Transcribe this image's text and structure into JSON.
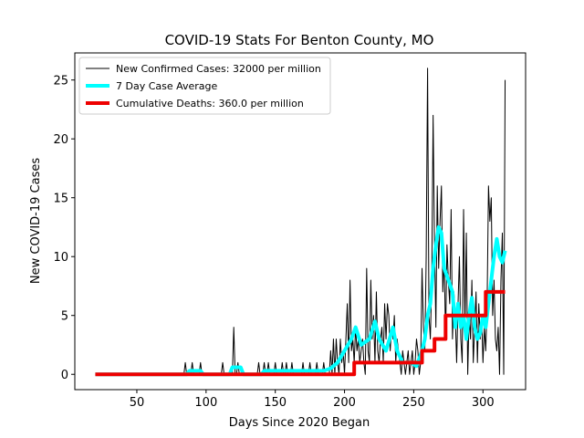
{
  "chart_data": {
    "type": "line",
    "title": "COVID-19 Stats For Benton County, MO",
    "xlabel": "Days Since 2020 Began",
    "ylabel": "New COVID-19 Cases",
    "xlim": [
      5.2,
      330.8
    ],
    "ylim": [
      -1.3,
      27.3
    ],
    "xticks": [
      50,
      100,
      150,
      200,
      250,
      300
    ],
    "yticks": [
      0,
      5,
      10,
      15,
      20,
      25
    ],
    "legend": "upper left",
    "series": [
      {
        "name": "New Confirmed Cases: 32000 per million",
        "color": "#000000",
        "width": 1,
        "x": [
          20,
          84,
          85,
          86,
          89,
          90,
          91,
          95,
          96,
          97,
          111,
          112,
          113,
          119,
          120,
          121,
          122,
          123,
          124,
          137,
          138,
          139,
          141,
          142,
          143,
          144,
          145,
          146,
          149,
          150,
          151,
          154,
          155,
          156,
          157,
          158,
          159,
          161,
          162,
          163,
          169,
          170,
          171,
          174,
          175,
          176,
          179,
          180,
          181,
          184,
          185,
          186,
          189,
          190,
          191,
          192,
          193,
          194,
          195,
          196,
          197,
          198,
          199,
          200,
          201,
          202,
          203,
          204,
          205,
          206,
          207,
          208,
          209,
          210,
          211,
          212,
          213,
          214,
          215,
          216,
          217,
          218,
          219,
          220,
          221,
          222,
          223,
          224,
          225,
          226,
          227,
          228,
          229,
          230,
          231,
          232,
          233,
          234,
          235,
          236,
          237,
          238,
          239,
          240,
          241,
          242,
          243,
          244,
          245,
          246,
          247,
          248,
          249,
          250,
          251,
          252,
          253,
          254,
          255,
          256,
          257,
          258,
          259,
          260,
          261,
          262,
          263,
          264,
          265,
          266,
          267,
          268,
          269,
          270,
          271,
          272,
          273,
          274,
          275,
          276,
          277,
          278,
          279,
          280,
          281,
          282,
          283,
          284,
          285,
          286,
          287,
          288,
          289,
          290,
          291,
          292,
          293,
          294,
          295,
          296,
          297,
          298,
          299,
          300,
          301,
          302,
          303,
          304,
          305,
          306,
          307,
          308,
          309,
          310,
          311,
          312,
          313,
          314,
          315,
          316
        ],
        "values": [
          0,
          0,
          1,
          0,
          0,
          1,
          0,
          0,
          1,
          0,
          0,
          1,
          0,
          0,
          4,
          0,
          0,
          1,
          0,
          0,
          1,
          0,
          0,
          1,
          0,
          0,
          1,
          0,
          0,
          1,
          0,
          0,
          1,
          0,
          0,
          1,
          0,
          0,
          1,
          0,
          0,
          1,
          0,
          0,
          1,
          0,
          0,
          1,
          0,
          0,
          1,
          0,
          0,
          2,
          0,
          3,
          0,
          3,
          1,
          0,
          3,
          1,
          2,
          0,
          3,
          6,
          1,
          8,
          2,
          3,
          1,
          4,
          2,
          3,
          1,
          2,
          3,
          1,
          0,
          9,
          2,
          1,
          8,
          3,
          5,
          1,
          7,
          2,
          1,
          3,
          4,
          1,
          6,
          3,
          6,
          5,
          2,
          4,
          3,
          5,
          1,
          3,
          2,
          1,
          0,
          2,
          1,
          0,
          1,
          2,
          0,
          1,
          2,
          0,
          1,
          3,
          2,
          0,
          1,
          9,
          4,
          2,
          10,
          26,
          5,
          3,
          8,
          22,
          11,
          4,
          16,
          9,
          13,
          16,
          7,
          10,
          3,
          11,
          8,
          6,
          14,
          3,
          7,
          5,
          1,
          6,
          10,
          3,
          1,
          14,
          4,
          12,
          0,
          5,
          3,
          8,
          1,
          4,
          7,
          1,
          6,
          3,
          5,
          1,
          4,
          2,
          6,
          16,
          13,
          15,
          5,
          8,
          3,
          2,
          4,
          0,
          8,
          12,
          0,
          25
        ]
      },
      {
        "name": "7 Day Case Average",
        "color": "#00ffff",
        "width": 4,
        "x": [
          20,
          86,
          88,
          96,
          98,
          117,
          119,
          125,
          127,
          140,
          142,
          185,
          190,
          195,
          200,
          205,
          208,
          212,
          218,
          222,
          225,
          230,
          235,
          238,
          242,
          248,
          252,
          256,
          258,
          260,
          262,
          264,
          266,
          268,
          270,
          272,
          275,
          278,
          280,
          282,
          284,
          286,
          288,
          290,
          292,
          294,
          296,
          298,
          300,
          302,
          304,
          306,
          308,
          310,
          312,
          314,
          316
        ],
        "values": [
          0,
          0,
          0.3,
          0.3,
          0,
          0,
          0.6,
          0.6,
          0,
          0,
          0.3,
          0.3,
          0.5,
          1,
          2,
          3,
          4,
          2.5,
          3,
          4.5,
          3,
          2,
          4,
          2,
          1,
          1,
          0.7,
          2,
          3,
          5,
          6,
          9,
          11,
          12.5,
          12,
          9,
          8,
          7,
          4,
          6,
          4,
          5,
          3,
          5,
          6.5,
          4,
          3,
          3.5,
          5,
          4,
          6,
          8,
          10,
          11.5,
          10,
          9.5,
          10.5
        ]
      },
      {
        "name": "Cumulative Deaths: 360.0 per million",
        "color": "#ee0000",
        "width": 4,
        "x": [
          20,
          207,
          207,
          256,
          256,
          265,
          265,
          273,
          273,
          302,
          302,
          316
        ],
        "values": [
          0,
          0,
          1,
          1,
          2,
          2,
          3,
          3,
          5,
          5,
          7,
          7
        ]
      }
    ]
  }
}
